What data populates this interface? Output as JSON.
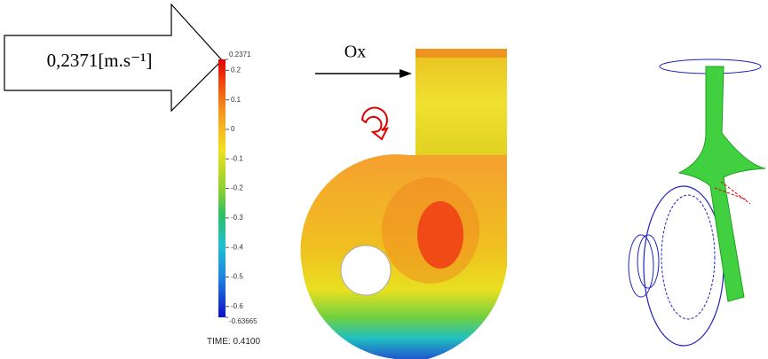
{
  "annotation": "0,2371[m.s⁻¹]",
  "flow_axis_label": "Ox",
  "colorbar": {
    "clim": [
      -0.63665,
      0.2371
    ],
    "ticks": [
      0.2,
      0.1,
      0,
      -0.1,
      -0.2,
      -0.3,
      -0.4,
      -0.5,
      -0.6
    ]
  },
  "time_label": "TIME:  0.4100"
}
